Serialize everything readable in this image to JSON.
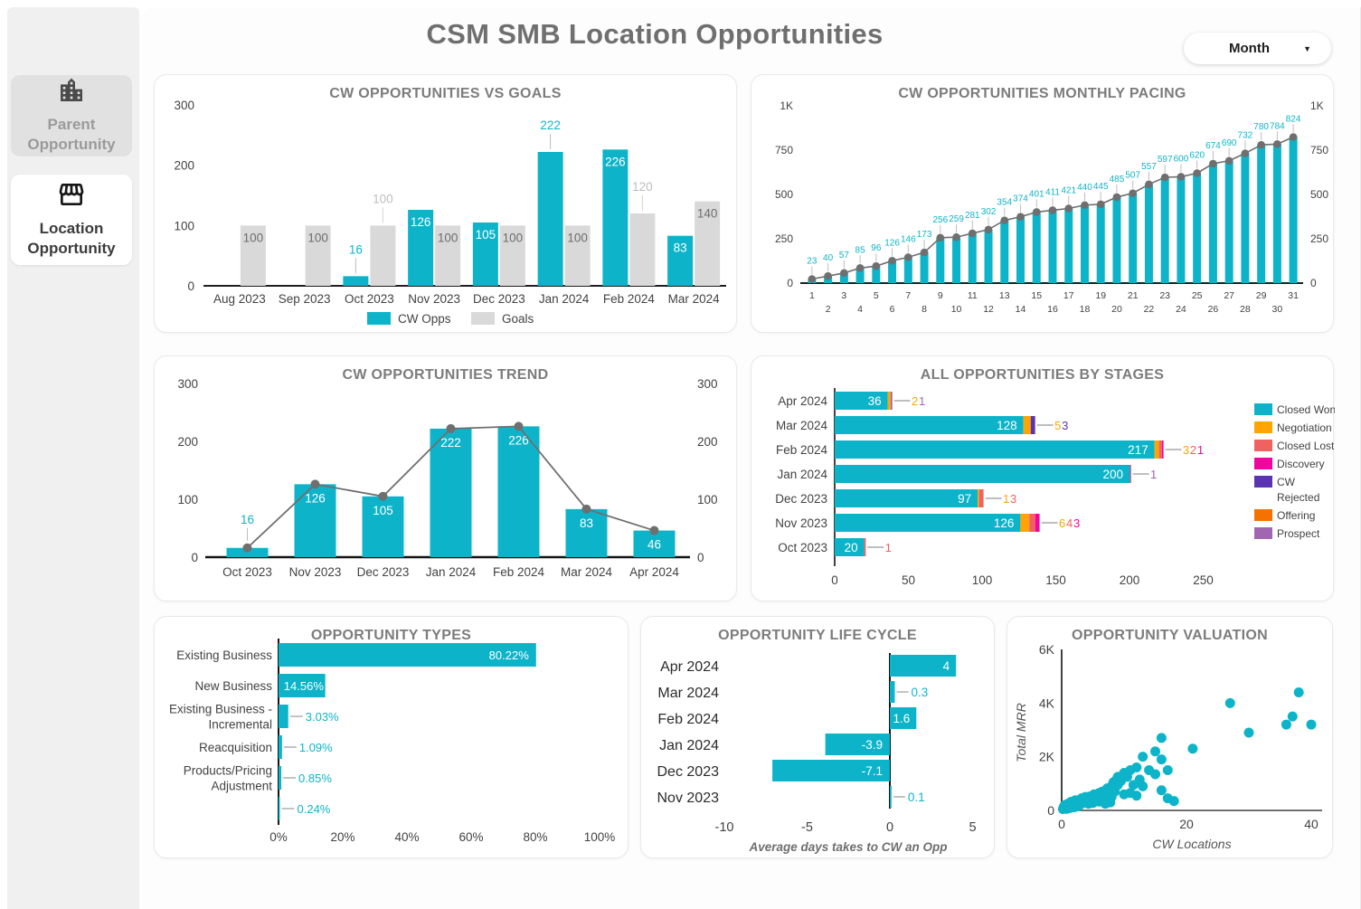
{
  "page": {
    "title": "CSM SMB Location Opportunities"
  },
  "controls": {
    "period_dropdown": {
      "value": "Month",
      "caret": "▼"
    }
  },
  "sidebar": {
    "items": [
      {
        "label": "Parent Opportunity",
        "icon": "city-buildings-icon",
        "active": false
      },
      {
        "label": "Location Opportunity",
        "icon": "storefront-icon",
        "active": true
      }
    ]
  },
  "colors": {
    "teal": "#0db4c9",
    "goal_gray": "#d9d9d9",
    "axis_text": "#424242",
    "muted_label": "#bdbdbd",
    "goal_label": "#6d6d6d",
    "line_gray": "#6f6f6f",
    "title_gray": "#7c7c7c"
  },
  "chart_data": [
    {
      "id": "vs-goals",
      "type": "bar",
      "title": "CW OPPORTUNITIES VS GOALS",
      "categories": [
        "Aug 2023",
        "Sep 2023",
        "Oct 2023",
        "Nov 2023",
        "Dec 2023",
        "Jan 2024",
        "Feb 2024",
        "Mar 2024"
      ],
      "series": [
        {
          "name": "CW Opps",
          "values": [
            null,
            null,
            16,
            126,
            105,
            222,
            226,
            83
          ],
          "label_above": [
            false,
            false,
            true,
            false,
            false,
            true,
            false,
            false
          ]
        },
        {
          "name": "Goals",
          "values": [
            100,
            100,
            100,
            100,
            100,
            100,
            120,
            140
          ],
          "label_above": [
            false,
            false,
            true,
            false,
            false,
            false,
            true,
            false
          ]
        }
      ],
      "ylim": [
        0,
        300
      ],
      "yticks": [
        0,
        100,
        200,
        300
      ],
      "legend_position": "bottom"
    },
    {
      "id": "pacing",
      "type": "bar-line",
      "title": "CW OPPORTUNITIES MONTHLY PACING",
      "x": [
        1,
        2,
        3,
        4,
        5,
        6,
        7,
        8,
        9,
        10,
        11,
        12,
        13,
        14,
        15,
        16,
        17,
        18,
        19,
        20,
        21,
        22,
        23,
        24,
        25,
        26,
        27,
        28,
        29,
        30,
        31
      ],
      "values": [
        23,
        40,
        57,
        85,
        96,
        126,
        146,
        173,
        256,
        259,
        281,
        302,
        354,
        374,
        401,
        411,
        421,
        440,
        445,
        485,
        507,
        557,
        597,
        600,
        620,
        674,
        690,
        732,
        780,
        784,
        824
      ],
      "ylim": [
        0,
        1000
      ],
      "yticks": [
        0,
        250,
        500,
        750,
        1000
      ],
      "ytick_labels": [
        "0",
        "250",
        "500",
        "750",
        "1K"
      ]
    },
    {
      "id": "trend",
      "type": "bar-line",
      "title": "CW OPPORTUNITIES TREND",
      "categories": [
        "Oct 2023",
        "Nov 2023",
        "Dec 2023",
        "Jan 2024",
        "Feb 2024",
        "Mar 2024",
        "Apr 2024"
      ],
      "values": [
        16,
        126,
        105,
        222,
        226,
        83,
        46
      ],
      "label_above": [
        true,
        false,
        false,
        false,
        false,
        false,
        false
      ],
      "ylim": [
        0,
        300
      ],
      "yticks": [
        0,
        100,
        200,
        300
      ]
    },
    {
      "id": "stages",
      "type": "stacked-bar-h",
      "title": "ALL OPPORTUNITIES BY STAGES",
      "stages": [
        {
          "name": "Closed Won",
          "color": "#0db4c9"
        },
        {
          "name": "Negotiation",
          "color": "#ffa400"
        },
        {
          "name": "Closed Lost",
          "color": "#f0625f"
        },
        {
          "name": "Discovery",
          "color": "#f2059f"
        },
        {
          "name": "CW Rejected",
          "color": "#5b35b1"
        },
        {
          "name": "Offering",
          "color": "#f57200"
        },
        {
          "name": "Prospect",
          "color": "#a066b0"
        }
      ],
      "rows": [
        {
          "label": "Apr 2024",
          "segments": {
            "Closed Won": 36,
            "Negotiation": 2,
            "Prospect": 1
          }
        },
        {
          "label": "Mar 2024",
          "segments": {
            "Closed Won": 128,
            "Negotiation": 5,
            "CW Rejected": 3
          }
        },
        {
          "label": "Feb 2024",
          "segments": {
            "Closed Won": 217,
            "Negotiation": 3,
            "Closed Lost": 2,
            "Discovery": 1
          }
        },
        {
          "label": "Jan 2024",
          "segments": {
            "Closed Won": 200,
            "Prospect": 1
          }
        },
        {
          "label": "Dec 2023",
          "segments": {
            "Closed Won": 97,
            "Negotiation": 1,
            "Closed Lost": 3
          }
        },
        {
          "label": "Nov 2023",
          "segments": {
            "Closed Won": 126,
            "Negotiation": 6,
            "Closed Lost": 4,
            "Discovery": 3
          }
        },
        {
          "label": "Oct 2023",
          "segments": {
            "Closed Won": 20,
            "Closed Lost": 1
          }
        }
      ],
      "xticks": [
        0,
        50,
        100,
        150,
        200,
        250
      ],
      "xlim": [
        0,
        290
      ],
      "legend_position": "right"
    },
    {
      "id": "types",
      "type": "bar-h",
      "title": "OPPORTUNITY TYPES",
      "rows": [
        {
          "label_lines": [
            "Existing Business"
          ],
          "value": 80.22,
          "label": "80.22%",
          "label_mode": "in-end"
        },
        {
          "label_lines": [
            "New Business"
          ],
          "value": 14.56,
          "label": "14.56%",
          "label_mode": "in-center"
        },
        {
          "label_lines": [
            "Existing Business -",
            "Incremental"
          ],
          "value": 3.03,
          "label": "3.03%",
          "label_mode": "out"
        },
        {
          "label_lines": [
            "Reacquisition"
          ],
          "value": 1.09,
          "label": "1.09%",
          "label_mode": "out"
        },
        {
          "label_lines": [
            "Products/Pricing",
            "Adjustment"
          ],
          "value": 0.85,
          "label": "0.85%",
          "label_mode": "out"
        },
        {
          "label_lines": [
            ""
          ],
          "value": 0.24,
          "label": "0.24%",
          "label_mode": "out"
        }
      ],
      "xticks": [
        0,
        20,
        40,
        60,
        80,
        100
      ],
      "xtick_labels": [
        "0%",
        "20%",
        "40%",
        "60%",
        "80%",
        "100%"
      ],
      "xlim": [
        0,
        100
      ]
    },
    {
      "id": "lifecycle",
      "type": "diverging-bar-h",
      "title": "OPPORTUNITY LIFE CYCLE",
      "rows": [
        {
          "label": "Apr 2024",
          "value": 4,
          "label_text": "4",
          "label_mode": "in"
        },
        {
          "label": "Mar 2024",
          "value": 0.3,
          "label_text": "0.3",
          "label_mode": "out"
        },
        {
          "label": "Feb 2024",
          "value": 1.6,
          "label_text": "1.6",
          "label_mode": "in"
        },
        {
          "label": "Jan 2024",
          "value": -3.9,
          "label_text": "-3.9",
          "label_mode": "in"
        },
        {
          "label": "Dec 2023",
          "value": -7.1,
          "label_text": "-7.1",
          "label_mode": "in"
        },
        {
          "label": "Nov 2023",
          "value": 0.1,
          "label_text": "0.1",
          "label_mode": "out"
        }
      ],
      "xticks": [
        -10,
        -5,
        0,
        5
      ],
      "xlim": [
        -10,
        5
      ],
      "xlabel": "Average days takes to CW an Opp"
    },
    {
      "id": "valuation",
      "type": "scatter",
      "title": "OPPORTUNITY VALUATION",
      "xlabel": "CW Locations",
      "ylabel": "Total MRR",
      "xlim": [
        0,
        42
      ],
      "ylim": [
        0,
        6000
      ],
      "xticks": [
        0,
        20,
        40
      ],
      "yticks": [
        0,
        2000,
        4000,
        6000
      ],
      "ytick_labels": [
        "0",
        "2K",
        "4K",
        "6K"
      ],
      "points": [
        [
          0.2,
          50
        ],
        [
          0.3,
          120
        ],
        [
          0.5,
          80
        ],
        [
          0.5,
          200
        ],
        [
          0.7,
          150
        ],
        [
          0.8,
          60
        ],
        [
          1,
          100
        ],
        [
          1,
          250
        ],
        [
          1.2,
          180
        ],
        [
          1.3,
          90
        ],
        [
          1.5,
          220
        ],
        [
          1.5,
          320
        ],
        [
          1.8,
          140
        ],
        [
          2,
          260
        ],
        [
          2,
          120
        ],
        [
          2.2,
          380
        ],
        [
          2.3,
          200
        ],
        [
          2.5,
          300
        ],
        [
          2.7,
          160
        ],
        [
          3,
          350
        ],
        [
          3,
          220
        ],
        [
          3.2,
          450
        ],
        [
          3.4,
          280
        ],
        [
          3.6,
          380
        ],
        [
          3.8,
          500
        ],
        [
          4,
          300
        ],
        [
          4,
          430
        ],
        [
          4.3,
          250
        ],
        [
          4.5,
          520
        ],
        [
          4.7,
          360
        ],
        [
          5,
          450
        ],
        [
          5,
          280
        ],
        [
          5.2,
          600
        ],
        [
          5.5,
          380
        ],
        [
          5.8,
          520
        ],
        [
          6,
          650
        ],
        [
          6,
          330
        ],
        [
          6.3,
          480
        ],
        [
          6.5,
          700
        ],
        [
          6.8,
          420
        ],
        [
          7,
          560
        ],
        [
          7,
          250
        ],
        [
          7.3,
          820
        ],
        [
          7.5,
          640
        ],
        [
          7.8,
          300
        ],
        [
          8,
          900
        ],
        [
          8,
          500
        ],
        [
          8.3,
          1050
        ],
        [
          8.5,
          700
        ],
        [
          8.8,
          1150
        ],
        [
          9,
          950
        ],
        [
          9,
          1250
        ],
        [
          9.5,
          1100
        ],
        [
          10,
          1400
        ],
        [
          10,
          600
        ],
        [
          10.5,
          1250
        ],
        [
          11,
          1500
        ],
        [
          11,
          650
        ],
        [
          11.5,
          950
        ],
        [
          12,
          1600
        ],
        [
          12,
          550
        ],
        [
          12.5,
          1150
        ],
        [
          13,
          2000
        ],
        [
          13,
          900
        ],
        [
          14,
          1500
        ],
        [
          15,
          2200
        ],
        [
          15,
          1350
        ],
        [
          16,
          2700
        ],
        [
          16,
          1900
        ],
        [
          16,
          750
        ],
        [
          17,
          1500
        ],
        [
          17,
          450
        ],
        [
          18,
          350
        ],
        [
          21,
          2300
        ],
        [
          27,
          4000
        ],
        [
          30,
          2900
        ],
        [
          36,
          3200
        ],
        [
          37,
          3500
        ],
        [
          38,
          4400
        ],
        [
          40,
          3200
        ]
      ]
    }
  ]
}
